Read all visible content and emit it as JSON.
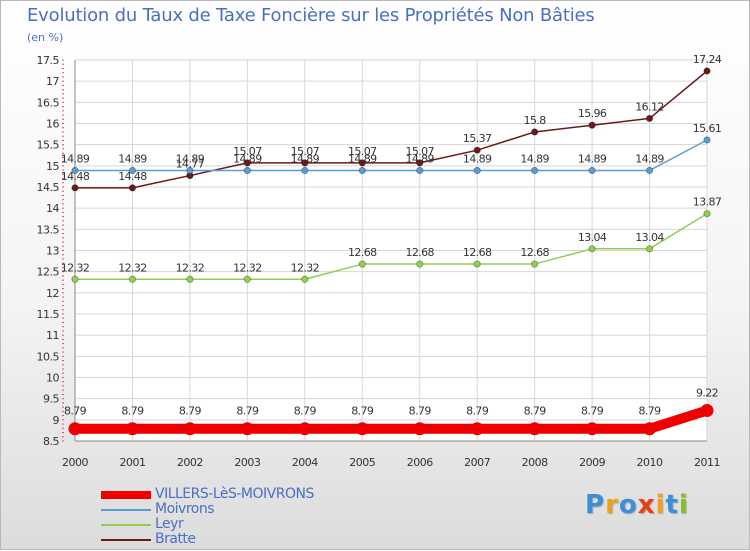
{
  "title": "Evolution du Taux de Taxe Foncière sur les Propriétés Non Bâties",
  "unit_label": "(en %)",
  "logo": {
    "text": "Proxiti",
    "letters": [
      "P",
      "r",
      "o",
      "x",
      "i",
      "t",
      "i"
    ],
    "letter_colors": [
      "#3b8fd8",
      "#f0a020",
      "#3b8fd8",
      "#e84010",
      "#f0a020",
      "#3b8fd8",
      "#88c020"
    ]
  },
  "chart_data": {
    "type": "line",
    "x": [
      "2000",
      "2001",
      "2002",
      "2003",
      "2004",
      "2005",
      "2006",
      "2007",
      "2008",
      "2009",
      "2010",
      "2011"
    ],
    "ylim": [
      8.5,
      17.5
    ],
    "yticks": [
      "8.5",
      "9",
      "9.5",
      "10",
      "10.5",
      "11",
      "11.5",
      "12",
      "12.5",
      "13",
      "13.5",
      "14",
      "14.5",
      "15",
      "15.5",
      "16",
      "16.5",
      "17",
      "17.5"
    ],
    "grid": true,
    "legend_position": "bottom-left",
    "series": [
      {
        "name": "VILLERS-LèS-MOIVRONS",
        "color": "#ee0000",
        "values": [
          8.79,
          8.79,
          8.79,
          8.79,
          8.79,
          8.79,
          8.79,
          8.79,
          8.79,
          8.79,
          8.79,
          9.22
        ],
        "labels": [
          "8.79",
          "8.79",
          "8.79",
          "8.79",
          "8.79",
          "8.79",
          "8.79",
          "8.79",
          "8.79",
          "8.79",
          "8.79",
          "9.22"
        ]
      },
      {
        "name": "Moivrons",
        "color": "#5b9bd5",
        "values": [
          14.89,
          14.89,
          14.89,
          14.89,
          14.89,
          14.89,
          14.89,
          14.89,
          14.89,
          14.89,
          14.89,
          15.61
        ],
        "labels": [
          "14.89",
          "14.89",
          "14.89",
          "14.89",
          "14.89",
          "14.89",
          "14.89",
          "14.89",
          "14.89",
          "14.89",
          "14.89",
          "15.61"
        ]
      },
      {
        "name": "Leyr",
        "color": "#8fd14f",
        "values": [
          12.32,
          12.32,
          12.32,
          12.32,
          12.32,
          12.68,
          12.68,
          12.68,
          12.68,
          13.04,
          13.04,
          13.87
        ],
        "labels": [
          "12.32",
          "12.32",
          "12.32",
          "12.32",
          "12.32",
          "12.68",
          "12.68",
          "12.68",
          "12.68",
          "13.04",
          "13.04",
          "13.87"
        ]
      },
      {
        "name": "Bratte",
        "color": "#6b1a1a",
        "values": [
          14.48,
          14.48,
          14.77,
          15.07,
          15.07,
          15.07,
          15.07,
          15.37,
          15.8,
          15.96,
          16.12,
          17.24
        ],
        "labels": [
          "14.48",
          "14.48",
          "14.77",
          "15.07",
          "15.07",
          "15.07",
          "15.07",
          "15.37",
          "15.8",
          "15.96",
          "16.12",
          "17.24"
        ]
      }
    ]
  }
}
